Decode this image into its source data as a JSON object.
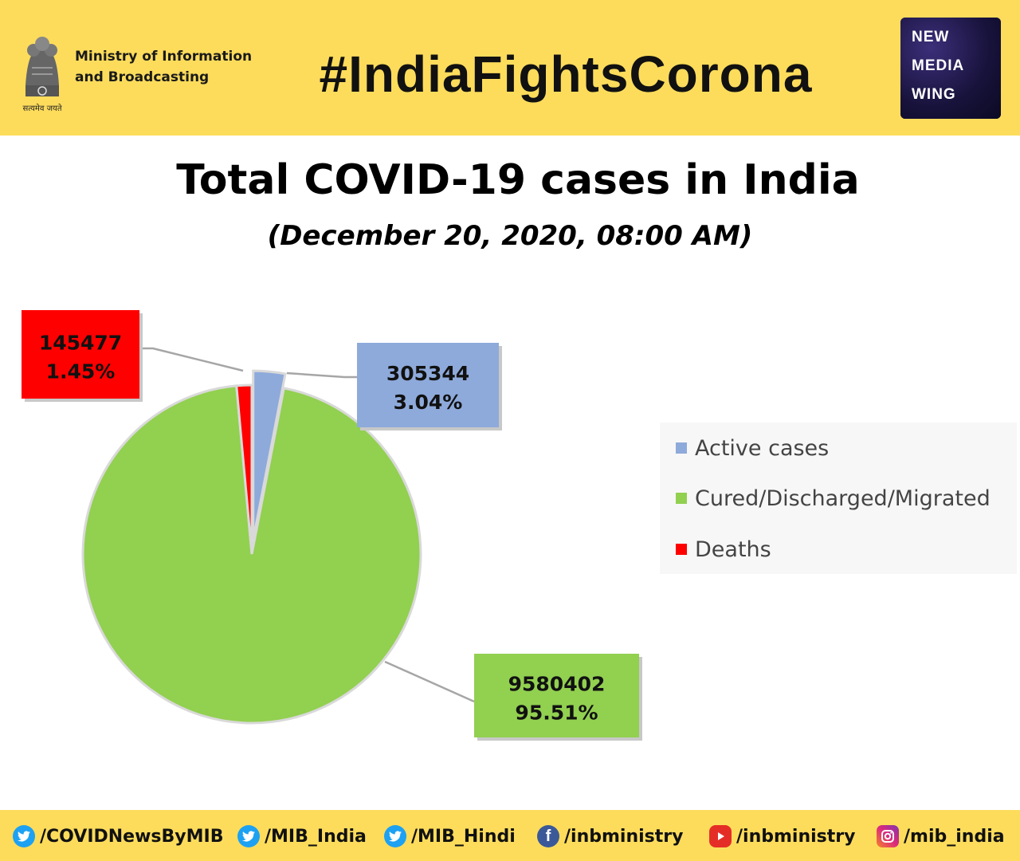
{
  "header": {
    "ministry_line1": "Ministry of Information",
    "ministry_line2": "and Broadcasting",
    "motto": "सत्यमेव जयते",
    "hashtag": "#IndiaFightsCorona",
    "logo": {
      "line1": "NEW",
      "line2": "MEDIA",
      "line3": "WING"
    }
  },
  "chart_data": {
    "type": "pie",
    "title": "Total COVID-19 cases in India",
    "subtitle": "(December 20, 2020, 08:00 AM)",
    "legend_position": "right",
    "series": [
      {
        "name": "Active cases",
        "value": 305344,
        "percent": 3.04,
        "label_value": "305344",
        "label_percent": "3.04%",
        "color": "#8eaadb"
      },
      {
        "name": "Cured/Discharged/Migrated",
        "value": 9580402,
        "percent": 95.51,
        "label_value": "9580402",
        "label_percent": "95.51%",
        "color": "#92d050"
      },
      {
        "name": "Deaths",
        "value": 145477,
        "percent": 1.45,
        "label_value": "145477",
        "label_percent": "1.45%",
        "color": "#ff0000"
      }
    ]
  },
  "footer": {
    "handles": [
      {
        "icon": "twitter-icon",
        "text": "/COVIDNewsByMIB",
        "color": "#1da1f2"
      },
      {
        "icon": "twitter-icon",
        "text": "/MIB_India",
        "color": "#1da1f2"
      },
      {
        "icon": "twitter-icon",
        "text": "/MIB_Hindi",
        "color": "#1da1f2"
      },
      {
        "icon": "facebook-icon",
        "text": "/inbministry",
        "color": "#3b5998"
      },
      {
        "icon": "youtube-icon",
        "text": "/inbministry",
        "color": "#e52d27"
      },
      {
        "icon": "instagram-icon",
        "text": "/mib_india",
        "color": "#c13584"
      }
    ]
  }
}
